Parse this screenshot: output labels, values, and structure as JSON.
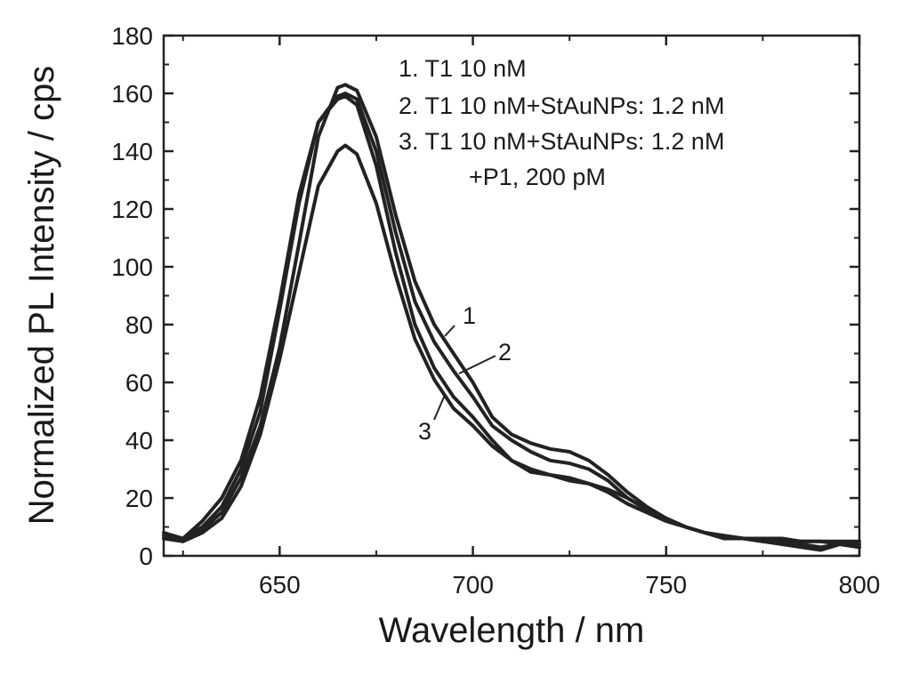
{
  "chart_data": {
    "type": "line",
    "title": "",
    "xlabel": "Wavelength / nm",
    "ylabel": "Normalized PL Intensity / cps",
    "xlim": [
      620,
      800
    ],
    "ylim": [
      0,
      180
    ],
    "x_ticks": [
      650,
      700,
      750,
      800
    ],
    "y_ticks": [
      0,
      20,
      40,
      60,
      80,
      100,
      120,
      140,
      160,
      180
    ],
    "x_tick_labels": [
      "650",
      "700",
      "750",
      "800"
    ],
    "y_tick_labels": [
      "0",
      "20",
      "40",
      "60",
      "80",
      "100",
      "120",
      "140",
      "160",
      "180"
    ],
    "grid": false,
    "legend": {
      "placement": "top-right",
      "lines": [
        "1. T1 10 nM",
        "2. T1 10 nM+StAuNPs: 1.2 nM",
        "3. T1 10 nM+StAuNPs: 1.2 nM",
        "+P1, 200 pM"
      ]
    },
    "x": [
      620,
      625,
      630,
      635,
      640,
      645,
      650,
      655,
      660,
      665,
      667,
      670,
      675,
      680,
      685,
      690,
      695,
      700,
      705,
      710,
      715,
      720,
      725,
      730,
      735,
      740,
      745,
      750,
      755,
      760,
      765,
      770,
      775,
      780,
      785,
      790,
      795,
      800
    ],
    "series": [
      {
        "name": "1",
        "label": "1",
        "values": [
          7,
          5,
          9,
          15,
          27,
          45,
          72,
          108,
          145,
          162,
          163,
          161,
          145,
          118,
          95,
          80,
          70,
          60,
          48,
          42,
          39,
          37,
          36,
          33,
          28,
          22,
          17,
          13,
          10,
          8,
          7,
          6,
          6,
          5,
          5,
          5,
          5,
          5
        ]
      },
      {
        "name": "2",
        "label": "2",
        "values": [
          6,
          6,
          10,
          17,
          30,
          50,
          85,
          122,
          150,
          159,
          160,
          158,
          140,
          112,
          88,
          74,
          64,
          55,
          45,
          40,
          36,
          33,
          32,
          30,
          26,
          20,
          16,
          13,
          10,
          8,
          7,
          6,
          6,
          6,
          5,
          5,
          4,
          4
        ]
      },
      {
        "name": "3",
        "label": "3",
        "values": [
          8,
          6,
          12,
          20,
          33,
          55,
          88,
          125,
          150,
          158,
          159,
          156,
          135,
          105,
          80,
          65,
          55,
          48,
          40,
          33,
          29,
          28,
          27,
          25,
          22,
          18,
          15,
          12,
          10,
          8,
          6,
          6,
          5,
          4,
          3,
          2,
          4,
          3
        ]
      },
      {
        "name": "3-lower",
        "label": "",
        "values": [
          6,
          5,
          8,
          13,
          24,
          42,
          68,
          98,
          128,
          140,
          142,
          139,
          122,
          97,
          75,
          61,
          51,
          45,
          38,
          33,
          30,
          28,
          26,
          25,
          23,
          20,
          16,
          13,
          10,
          8,
          6,
          6,
          5,
          5,
          4,
          3,
          4,
          3
        ]
      }
    ],
    "annotations": [
      {
        "text": "1",
        "series": "1"
      },
      {
        "text": "2",
        "series": "2"
      },
      {
        "text": "3",
        "series": "3"
      }
    ]
  }
}
